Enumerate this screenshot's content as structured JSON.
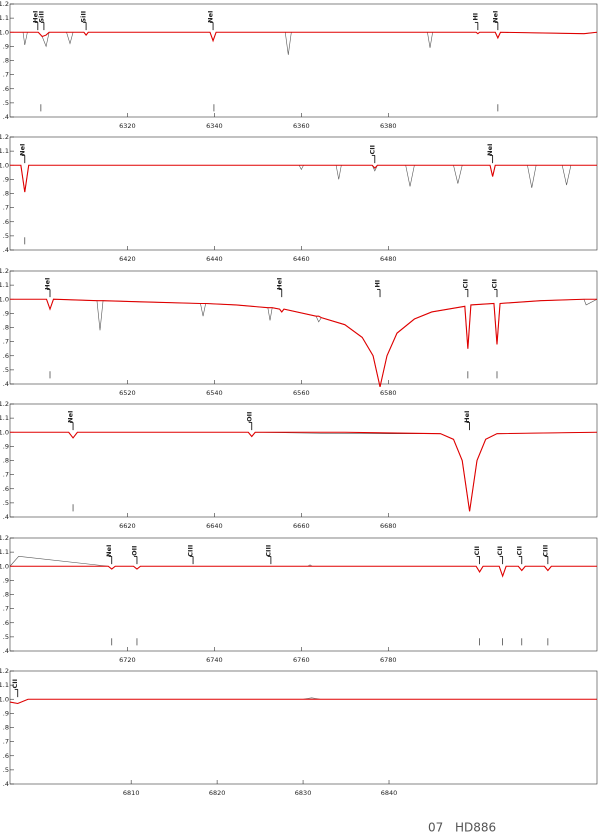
{
  "chart_data": [
    {
      "type": "line",
      "xlim": [
        6293,
        6428
      ],
      "xticks": [
        6320,
        6340,
        6360,
        6380
      ],
      "ylim": [
        0.4,
        1.2
      ],
      "yticks": [
        1.2,
        1.1,
        {
          "value": 1,
          "label": "1.0"
        },
        {
          "value": 0.9,
          "label": ".9"
        },
        {
          "value": 0.8,
          "label": ".8"
        },
        {
          "value": 0.7,
          "label": ".7"
        },
        {
          "value": 0.6,
          "label": ".6"
        },
        {
          "value": 0.5,
          "label": ".5"
        },
        {
          "value": 0.4,
          "label": ".4"
        }
      ],
      "x": [
        6293,
        6296,
        6296.4,
        6297,
        6299.5,
        6300.4,
        6301.3,
        6302,
        6306,
        6306.8,
        6307.5,
        6310,
        6310.5,
        6311,
        6320,
        6339,
        6339.7,
        6340.4,
        6350,
        6356.3,
        6357,
        6357.7,
        6370,
        6389,
        6389.6,
        6390.2,
        6400.2,
        6400.6,
        6401,
        6404.6,
        6405.2,
        6405.8,
        6425,
        6428
      ],
      "series": [
        {
          "color": "#555555",
          "values": [
            1,
            1,
            0.91,
            1,
            1,
            0.97,
            0.9,
            1,
            1,
            0.92,
            1,
            1,
            0.98,
            1,
            1,
            1,
            0.94,
            1,
            1,
            1,
            0.84,
            1,
            1,
            1,
            0.89,
            1,
            1,
            0.99,
            1,
            1,
            0.96,
            1,
            0.99,
            1
          ]
        },
        {
          "color": "#e00000",
          "values": [
            1,
            1,
            1,
            1,
            1,
            0.97,
            0.98,
            1,
            1,
            1,
            1,
            1,
            0.98,
            1,
            1,
            1,
            0.94,
            1,
            1,
            1,
            1,
            1,
            1,
            1,
            1,
            1,
            1,
            0.99,
            1,
            1,
            0.96,
            1,
            0.99,
            1
          ]
        }
      ],
      "line_ids": [
        {
          "text": "HeI",
          "x": 6299.4
        },
        {
          "text": "SiII",
          "x": 6300.8
        },
        {
          "text": "SiII",
          "x": 6310.5
        },
        {
          "text": "NeI",
          "x": 6339.7
        },
        {
          "text": "HI",
          "x": 6400.6
        },
        {
          "text": "NeI",
          "x": 6405.2
        }
      ],
      "markers": [
        6300.1,
        6339.9,
        6405.2
      ]
    },
    {
      "type": "line",
      "xlim": [
        6393,
        6528
      ],
      "xticks": [
        6420,
        6440,
        6460,
        6480
      ],
      "ylim": [
        0.4,
        1.2
      ],
      "yticks": [
        1.2,
        1.1,
        {
          "value": 1,
          "label": "1.0"
        },
        {
          "value": 0.9,
          "label": ".9"
        },
        {
          "value": 0.8,
          "label": ".8"
        },
        {
          "value": 0.7,
          "label": ".7"
        },
        {
          "value": 0.6,
          "label": ".6"
        },
        {
          "value": 0.5,
          "label": ".5"
        },
        {
          "value": 0.4,
          "label": ".4"
        }
      ],
      "x": [
        6393,
        6395.5,
        6396.4,
        6397.3,
        6420,
        6440,
        6459.5,
        6460,
        6460.5,
        6466,
        6468,
        6468.6,
        6469.2,
        6475,
        6476.3,
        6476.9,
        6477.5,
        6484,
        6485,
        6486,
        6495,
        6496,
        6497,
        6503.4,
        6504,
        6504.6,
        6512,
        6513,
        6514,
        6520,
        6521,
        6522,
        6528
      ],
      "series": [
        {
          "color": "#555555",
          "values": [
            1,
            1,
            0.81,
            1,
            1,
            1,
            1,
            0.97,
            1,
            1,
            1,
            0.9,
            1,
            1,
            1,
            0.96,
            1,
            1,
            0.85,
            1,
            1,
            0.87,
            1,
            1,
            0.92,
            1,
            1,
            0.84,
            1,
            1,
            0.86,
            1,
            1
          ]
        },
        {
          "color": "#e00000",
          "values": [
            1,
            1,
            0.81,
            1,
            1,
            1,
            1,
            1,
            1,
            1,
            1,
            1,
            1,
            1,
            1,
            0.98,
            1,
            1,
            1,
            1,
            1,
            1,
            1,
            1,
            0.92,
            1,
            1,
            1,
            1,
            1,
            1,
            1,
            1
          ]
        }
      ],
      "line_ids": [
        {
          "text": "NeI",
          "x": 6396.4
        },
        {
          "text": "CII",
          "x": 6476.9
        },
        {
          "text": "NeI",
          "x": 6504
        }
      ],
      "markers": [
        6396.4
      ]
    },
    {
      "type": "line",
      "xlim": [
        6493,
        6628
      ],
      "xticks": [
        6520,
        6540,
        6560,
        6580
      ],
      "ylim": [
        0.4,
        1.2
      ],
      "yticks": [
        1.2,
        1.1,
        {
          "value": 1,
          "label": "1.0"
        },
        {
          "value": 0.9,
          "label": ".9"
        },
        {
          "value": 0.8,
          "label": ".8"
        },
        {
          "value": 0.7,
          "label": ".7"
        },
        {
          "value": 0.6,
          "label": ".6"
        },
        {
          "value": 0.5,
          "label": ".5"
        },
        {
          "value": 0.4,
          "label": ".4"
        }
      ],
      "x": [
        6493,
        6501.4,
        6502.2,
        6503,
        6513,
        6513.7,
        6514.4,
        6525,
        6536.8,
        6537.4,
        6538,
        6545,
        6552.3,
        6552.8,
        6553.3,
        6555,
        6555.5,
        6556,
        6563.4,
        6564,
        6564.6,
        6570,
        6574,
        6576.5,
        6578.1,
        6579.7,
        6582,
        6586,
        6590,
        6597.6,
        6598.3,
        6599,
        6604.3,
        6605,
        6605.7,
        6615,
        6625,
        6625.5,
        6628
      ],
      "series": [
        {
          "color": "#555555",
          "values": [
            1,
            1,
            0.93,
            1,
            0.99,
            0.78,
            0.99,
            0.98,
            0.97,
            0.88,
            0.97,
            0.96,
            0.94,
            0.85,
            0.94,
            0.93,
            0.91,
            0.93,
            0.88,
            0.84,
            0.87,
            0.82,
            0.73,
            0.6,
            0.38,
            0.6,
            0.76,
            0.86,
            0.91,
            0.95,
            0.65,
            0.96,
            0.97,
            0.68,
            0.97,
            0.99,
            1,
            0.96,
            1
          ]
        },
        {
          "color": "#e00000",
          "values": [
            1,
            1,
            0.93,
            1,
            0.99,
            0.99,
            0.99,
            0.98,
            0.97,
            0.97,
            0.97,
            0.96,
            0.94,
            0.94,
            0.94,
            0.93,
            0.91,
            0.93,
            0.88,
            0.88,
            0.87,
            0.82,
            0.73,
            0.6,
            0.38,
            0.6,
            0.76,
            0.86,
            0.91,
            0.95,
            0.65,
            0.96,
            0.97,
            0.68,
            0.97,
            0.99,
            1,
            1,
            1
          ]
        }
      ],
      "line_ids": [
        {
          "text": "HeI",
          "x": 6502.2
        },
        {
          "text": "HeI",
          "x": 6555.5
        },
        {
          "text": "HI",
          "x": 6578.1
        },
        {
          "text": "CII",
          "x": 6598.3
        },
        {
          "text": "CII",
          "x": 6605
        }
      ],
      "markers": [
        6502.2,
        6598.3,
        6605
      ]
    },
    {
      "type": "line",
      "xlim": [
        6593,
        6728
      ],
      "xticks": [
        6620,
        6640,
        6660,
        6680
      ],
      "ylim": [
        0.4,
        1.2
      ],
      "yticks": [
        1.2,
        1.1,
        {
          "value": 1,
          "label": "1.0"
        },
        {
          "value": 0.9,
          "label": ".9"
        },
        {
          "value": 0.8,
          "label": ".8"
        },
        {
          "value": 0.7,
          "label": ".7"
        },
        {
          "value": 0.6,
          "label": ".6"
        },
        {
          "value": 0.5,
          "label": ".5"
        },
        {
          "value": 0.4,
          "label": ".4"
        }
      ],
      "x": [
        6593,
        6606.5,
        6607.5,
        6608.5,
        6630,
        6647.8,
        6648.6,
        6649.4,
        6670,
        6692,
        6695,
        6697,
        6698.7,
        6700.4,
        6702.4,
        6705,
        6728
      ],
      "series": [
        {
          "color": "#555555",
          "values": [
            1,
            1,
            0.96,
            1,
            1,
            1,
            0.97,
            1,
            0.99,
            0.99,
            0.95,
            0.8,
            0.44,
            0.8,
            0.95,
            0.99,
            1
          ]
        },
        {
          "color": "#e00000",
          "values": [
            1,
            1,
            0.96,
            1,
            1,
            1,
            0.97,
            1,
            1,
            0.99,
            0.95,
            0.8,
            0.44,
            0.8,
            0.95,
            0.99,
            1
          ]
        }
      ],
      "line_ids": [
        {
          "text": "NeI",
          "x": 6607.5
        },
        {
          "text": "OII",
          "x": 6648.6
        },
        {
          "text": "HeI",
          "x": 6698.7
        }
      ],
      "markers": [
        6607.5
      ]
    },
    {
      "type": "line",
      "xlim": [
        6693,
        6828
      ],
      "xticks": [
        6720,
        6740,
        6760,
        6780
      ],
      "ylim": [
        0.4,
        1.2
      ],
      "yticks": [
        1.2,
        1.1,
        {
          "value": 1,
          "label": "1.0"
        },
        {
          "value": 0.9,
          "label": ".9"
        },
        {
          "value": 0.8,
          "label": ".8"
        },
        {
          "value": 0.7,
          "label": ".7"
        },
        {
          "value": 0.6,
          "label": ".6"
        },
        {
          "value": 0.5,
          "label": ".5"
        },
        {
          "value": 0.4,
          "label": ".4"
        }
      ],
      "x": [
        6693,
        6695,
        6715.6,
        6716.4,
        6717.2,
        6721.4,
        6722.2,
        6723,
        6761.5,
        6762,
        6762.5,
        6800.2,
        6801,
        6801.8,
        6805.5,
        6806.3,
        6807.1,
        6809.9,
        6810.7,
        6811.5,
        6815.9,
        6816.7,
        6817.5,
        6828
      ],
      "series": [
        {
          "color": "#555555",
          "values": [
            1,
            1.07,
            1,
            0.98,
            1,
            1,
            0.98,
            1,
            1,
            1.01,
            1,
            1,
            0.96,
            1,
            1,
            0.93,
            1,
            1,
            0.97,
            1,
            1,
            0.97,
            1,
            1
          ]
        },
        {
          "color": "#e00000",
          "values": [
            1,
            1,
            1,
            0.98,
            1,
            1,
            0.98,
            1,
            1,
            1,
            1,
            1,
            0.96,
            1,
            1,
            0.93,
            1,
            1,
            0.97,
            1,
            1,
            0.97,
            1,
            1
          ]
        }
      ],
      "line_ids": [
        {
          "text": "NeI",
          "x": 6716.4
        },
        {
          "text": "OII",
          "x": 6722.2
        },
        {
          "text": "CIII",
          "x": 6735.1
        },
        {
          "text": "CIII",
          "x": 6753
        },
        {
          "text": "CII",
          "x": 6801
        },
        {
          "text": "CII",
          "x": 6806.3
        },
        {
          "text": "CII",
          "x": 6810.7
        },
        {
          "text": "CIII",
          "x": 6816.7
        }
      ],
      "markers": [
        6716.4,
        6722.2,
        6801,
        6806.3,
        6810.7,
        6816.7
      ]
    },
    {
      "type": "line",
      "xlim": [
        6795.9,
        6864.2
      ],
      "xticks": [
        6810,
        6820,
        6830,
        6840
      ],
      "ylim": [
        0.4,
        1.2
      ],
      "yticks": [
        1.2,
        1.1,
        {
          "value": 1,
          "label": "1.0"
        },
        {
          "value": 0.9,
          "label": ".9"
        },
        {
          "value": 0.8,
          "label": ".8"
        },
        {
          "value": 0.7,
          "label": ".7"
        },
        {
          "value": 0.6,
          "label": ".6"
        },
        {
          "value": 0.5,
          "label": ".5"
        },
        {
          "value": 0.4,
          "label": ".4"
        }
      ],
      "x": [
        6795.9,
        6796.8,
        6798,
        6830,
        6831,
        6832,
        6864.2
      ],
      "series": [
        {
          "color": "#555555",
          "values": [
            0.98,
            0.97,
            1,
            1,
            1.01,
            1,
            1
          ]
        },
        {
          "color": "#e00000",
          "values": [
            0.98,
            0.97,
            1,
            1,
            1,
            1,
            1
          ]
        }
      ],
      "line_ids": [
        {
          "text": "CII",
          "x": 6796.8
        }
      ],
      "markers": []
    }
  ],
  "footer": {
    "page": "07",
    "star": "HD886"
  }
}
